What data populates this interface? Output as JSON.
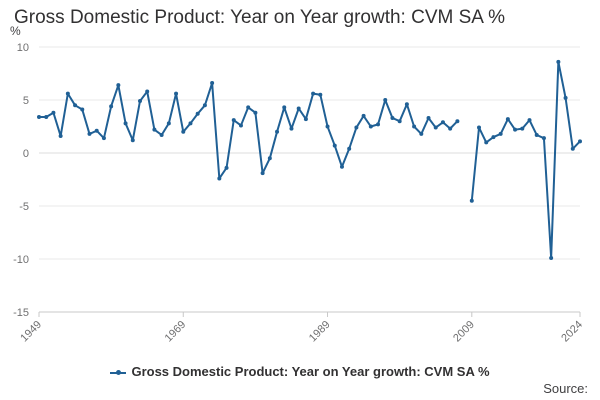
{
  "chart_data": {
    "type": "line",
    "title": "Gross Domestic Product: Year on Year growth: CVM SA %",
    "ylabel": "%",
    "xlabel": "",
    "ylim": [
      -15,
      10
    ],
    "yticks": [
      -15,
      -10,
      -5,
      0,
      5,
      10
    ],
    "xlim": [
      1949,
      2024
    ],
    "xticks": [
      1949,
      1969,
      1989,
      2009,
      2024
    ],
    "grid": true,
    "legend_position": "bottom",
    "line_color": "#206095",
    "series": [
      {
        "name": "Gross Domestic Product: Year on Year growth: CVM SA %",
        "values": [
          {
            "x": 1949,
            "y": 3.4
          },
          {
            "x": 1950,
            "y": 3.4
          },
          {
            "x": 1951,
            "y": 3.8
          },
          {
            "x": 1952,
            "y": 1.6
          },
          {
            "x": 1953,
            "y": 5.6
          },
          {
            "x": 1954,
            "y": 4.5
          },
          {
            "x": 1955,
            "y": 4.1
          },
          {
            "x": 1956,
            "y": 1.8
          },
          {
            "x": 1957,
            "y": 2.1
          },
          {
            "x": 1958,
            "y": 1.4
          },
          {
            "x": 1959,
            "y": 4.4
          },
          {
            "x": 1960,
            "y": 6.4
          },
          {
            "x": 1961,
            "y": 2.8
          },
          {
            "x": 1962,
            "y": 1.2
          },
          {
            "x": 1963,
            "y": 4.9
          },
          {
            "x": 1964,
            "y": 5.8
          },
          {
            "x": 1965,
            "y": 2.2
          },
          {
            "x": 1966,
            "y": 1.7
          },
          {
            "x": 1967,
            "y": 2.8
          },
          {
            "x": 1968,
            "y": 5.6
          },
          {
            "x": 1969,
            "y": 2.0
          },
          {
            "x": 1970,
            "y": 2.8
          },
          {
            "x": 1971,
            "y": 3.7
          },
          {
            "x": 1972,
            "y": 4.5
          },
          {
            "x": 1973,
            "y": 6.6
          },
          {
            "x": 1974,
            "y": -2.4
          },
          {
            "x": 1975,
            "y": -1.4
          },
          {
            "x": 1976,
            "y": 3.1
          },
          {
            "x": 1977,
            "y": 2.6
          },
          {
            "x": 1978,
            "y": 4.3
          },
          {
            "x": 1979,
            "y": 3.8
          },
          {
            "x": 1980,
            "y": -1.9
          },
          {
            "x": 1981,
            "y": -0.5
          },
          {
            "x": 1982,
            "y": 2.0
          },
          {
            "x": 1983,
            "y": 4.3
          },
          {
            "x": 1984,
            "y": 2.3
          },
          {
            "x": 1985,
            "y": 4.2
          },
          {
            "x": 1986,
            "y": 3.2
          },
          {
            "x": 1987,
            "y": 5.6
          },
          {
            "x": 1988,
            "y": 5.5
          },
          {
            "x": 1989,
            "y": 2.5
          },
          {
            "x": 1990,
            "y": 0.7
          },
          {
            "x": 1991,
            "y": -1.3
          },
          {
            "x": 1992,
            "y": 0.4
          },
          {
            "x": 1993,
            "y": 2.4
          },
          {
            "x": 1994,
            "y": 3.5
          },
          {
            "x": 1995,
            "y": 2.5
          },
          {
            "x": 1996,
            "y": 2.7
          },
          {
            "x": 1997,
            "y": 5.0
          },
          {
            "x": 1998,
            "y": 3.3
          },
          {
            "x": 1999,
            "y": 3.0
          },
          {
            "x": 2000,
            "y": 4.6
          },
          {
            "x": 2001,
            "y": 2.5
          },
          {
            "x": 2002,
            "y": 1.8
          },
          {
            "x": 2003,
            "y": 3.3
          },
          {
            "x": 2004,
            "y": 2.4
          },
          {
            "x": 2005,
            "y": 2.9
          },
          {
            "x": 2006,
            "y": 2.3
          },
          {
            "x": 2007,
            "y": 3.0
          },
          {
            "x": 2008,
            "y": null
          },
          {
            "x": 2009,
            "y": -4.5
          },
          {
            "x": 2010,
            "y": 2.4
          },
          {
            "x": 2011,
            "y": 1.0
          },
          {
            "x": 2012,
            "y": 1.5
          },
          {
            "x": 2013,
            "y": 1.8
          },
          {
            "x": 2014,
            "y": 3.2
          },
          {
            "x": 2015,
            "y": 2.2
          },
          {
            "x": 2016,
            "y": 2.3
          },
          {
            "x": 2017,
            "y": 3.1
          },
          {
            "x": 2018,
            "y": 1.7
          },
          {
            "x": 2019,
            "y": 1.4
          },
          {
            "x": 2020,
            "y": -9.9
          },
          {
            "x": 2021,
            "y": 8.6
          },
          {
            "x": 2022,
            "y": 5.2
          },
          {
            "x": 2023,
            "y": 0.4
          },
          {
            "x": 2024,
            "y": 1.1
          }
        ]
      }
    ]
  },
  "legend": {
    "label": "Gross Domestic Product: Year on Year growth: CVM SA %"
  },
  "source": {
    "label": "Source:"
  }
}
